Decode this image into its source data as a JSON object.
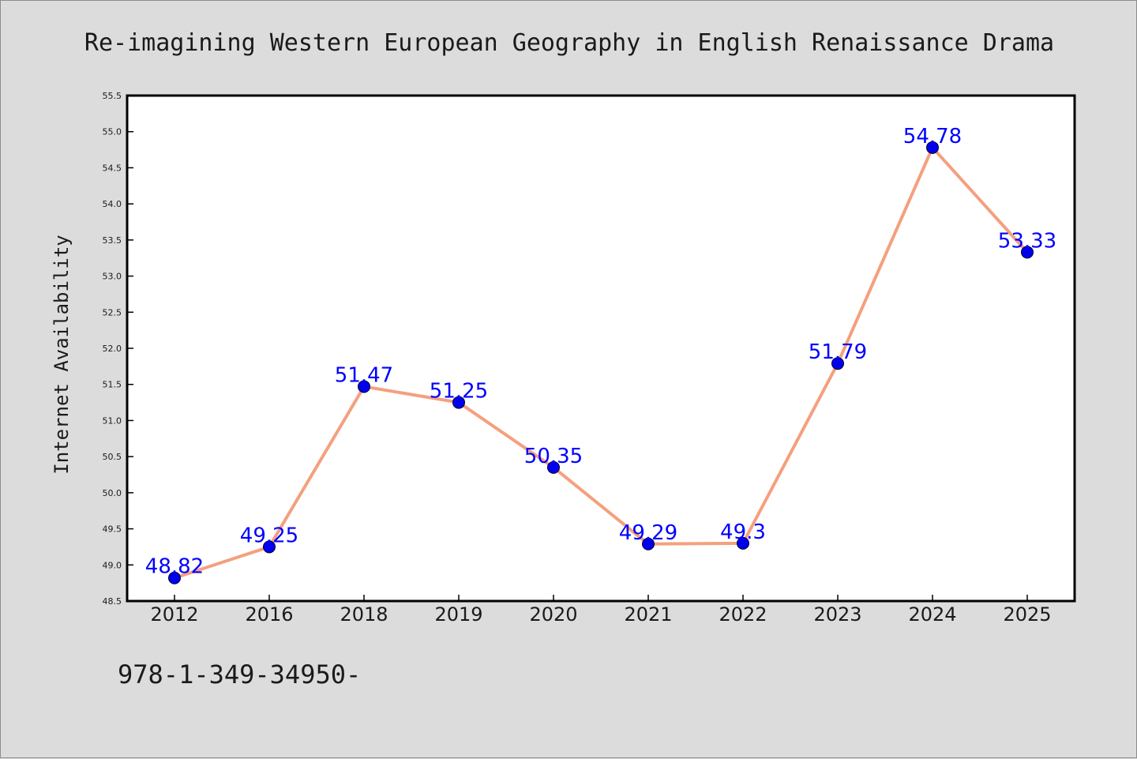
{
  "footer_text": "978-1-349-34950-",
  "chart_data": {
    "type": "line",
    "title": "Re-imagining Western European Geography in English Renaissance Drama",
    "xlabel": "",
    "ylabel": "Internet Availability",
    "categories": [
      "2012",
      "2016",
      "2018",
      "2019",
      "2020",
      "2021",
      "2022",
      "2023",
      "2024",
      "2025"
    ],
    "values": [
      48.82,
      49.25,
      51.47,
      51.25,
      50.35,
      49.29,
      49.3,
      51.79,
      54.78,
      53.33
    ],
    "data_labels": [
      "48.82",
      "49.25",
      "51.47",
      "51.25",
      "50.35",
      "49.29",
      "49.3",
      "51.79",
      "54.78",
      "53.33"
    ],
    "ylim": [
      48.5,
      55.5
    ],
    "yticks": [
      "48.5",
      "49.0",
      "49.5",
      "50.0",
      "50.5",
      "51.0",
      "51.5",
      "52.0",
      "52.5",
      "53.0",
      "53.5",
      "54.0",
      "54.5",
      "55.0",
      "55.5"
    ],
    "grid": false,
    "legend": "none",
    "colors": {
      "line": "#f4a07e",
      "marker": "#0000ee",
      "data_label": "#0000ff",
      "background": "#dcdcdc",
      "plot_area": "#ffffff"
    }
  }
}
